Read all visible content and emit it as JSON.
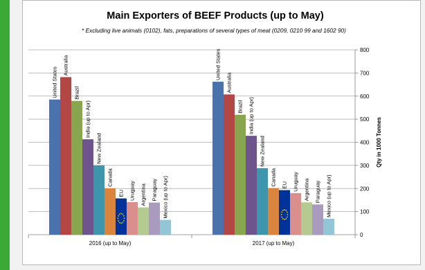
{
  "page": {
    "accent_color": "#3aa935"
  },
  "chart_data": {
    "type": "bar",
    "title": "Main Exporters of BEEF Products (up to May)",
    "subtitle": "* Excluding live animals (0102), fats, preparations of several types of meat (0209, 0210 99 and 1602 90)",
    "xlabel": "",
    "ylabel": "Qty in 1000 Tonnes",
    "ylim": [
      0,
      800
    ],
    "yticks": [
      0,
      100,
      200,
      300,
      400,
      500,
      600,
      700,
      800
    ],
    "y_axis_side": "right",
    "grid": true,
    "categories": [
      "2016 (up to May)",
      "2017 (up to May)"
    ],
    "series": [
      {
        "name": "United States",
        "color": "#4a73ad",
        "values": [
          585,
          662
        ]
      },
      {
        "name": "Australia",
        "color": "#b24745",
        "values": [
          682,
          607
        ]
      },
      {
        "name": "Brazil",
        "color": "#89a54e",
        "values": [
          579,
          519
        ]
      },
      {
        "name": "India (up to Apr)",
        "color": "#6e548d",
        "values": [
          413,
          428
        ]
      },
      {
        "name": "New Zealand",
        "color": "#3d96ae",
        "values": [
          300,
          288
        ]
      },
      {
        "name": "Canada",
        "color": "#db843d",
        "values": [
          201,
          202
        ]
      },
      {
        "name": "EU",
        "color": "#003399",
        "values": [
          157,
          193
        ]
      },
      {
        "name": "Uruguay",
        "color": "#da8f8d",
        "values": [
          141,
          180
        ]
      },
      {
        "name": "Argentina",
        "color": "#b5ca92",
        "values": [
          118,
          140
        ]
      },
      {
        "name": "Paraguay",
        "color": "#a99bbd",
        "values": [
          139,
          131
        ]
      },
      {
        "name": "Mexico (up to Apr)",
        "color": "#92c5d6",
        "values": [
          64,
          69
        ]
      }
    ]
  }
}
